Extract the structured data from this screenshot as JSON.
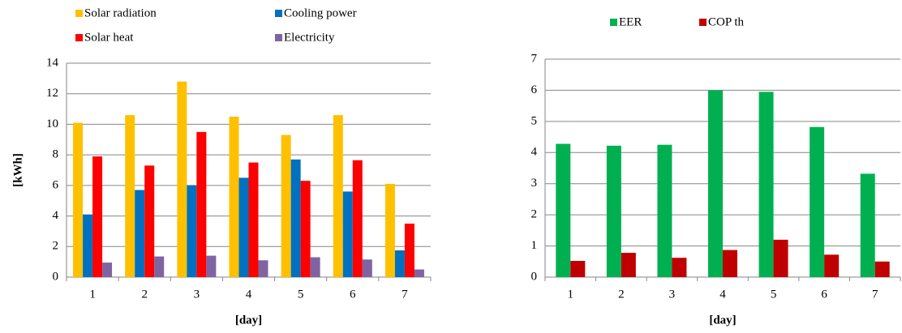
{
  "chart_data": [
    {
      "type": "bar",
      "y_label": "[kWh]",
      "x_label": "[day]",
      "categories": [
        "1",
        "2",
        "3",
        "4",
        "5",
        "6",
        "7"
      ],
      "series": [
        {
          "name": "Solar radiation",
          "color": "#FFC000",
          "values": [
            10.1,
            10.6,
            12.8,
            10.5,
            9.3,
            10.6,
            6.1
          ]
        },
        {
          "name": "Cooling power",
          "color": "#0070C0",
          "values": [
            4.1,
            5.7,
            6.0,
            6.5,
            7.7,
            5.6,
            1.75
          ]
        },
        {
          "name": "Solar heat",
          "color": "#FF0000",
          "values": [
            7.9,
            7.3,
            9.5,
            7.5,
            6.3,
            7.65,
            3.5
          ]
        },
        {
          "name": "Electricity",
          "color": "#8064A2",
          "values": [
            0.95,
            1.35,
            1.4,
            1.1,
            1.3,
            1.15,
            0.5
          ]
        }
      ],
      "ylim": [
        0,
        14
      ],
      "yticks": [
        0,
        2,
        4,
        6,
        8,
        10,
        12,
        14
      ],
      "grid": true
    },
    {
      "type": "bar",
      "x_label": "[day]",
      "categories": [
        "1",
        "2",
        "3",
        "4",
        "5",
        "6",
        "7"
      ],
      "series": [
        {
          "name": "EER",
          "color": "#00B050",
          "values": [
            4.28,
            4.22,
            4.25,
            6.0,
            5.95,
            4.82,
            3.32
          ]
        },
        {
          "name": "COP th",
          "color": "#C00000",
          "values": [
            0.52,
            0.78,
            0.62,
            0.87,
            1.2,
            0.72,
            0.5
          ]
        }
      ],
      "ylim": [
        0,
        7
      ],
      "yticks": [
        0,
        1,
        2,
        3,
        4,
        5,
        6,
        7
      ],
      "grid": true
    }
  ]
}
